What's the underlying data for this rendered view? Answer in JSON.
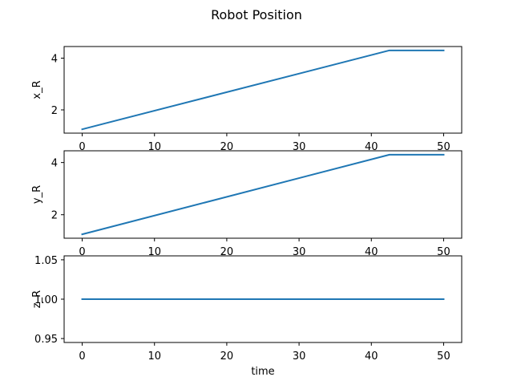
{
  "figure": {
    "title": "Robot Position",
    "line_color": "#1f77b4"
  },
  "chart_data": [
    {
      "type": "line",
      "title": "",
      "xlabel": "",
      "ylabel": "x_R",
      "xlim": [
        -2.5,
        52.5
      ],
      "ylim": [
        1.1,
        4.45
      ],
      "xticks": [
        0,
        10,
        20,
        30,
        40,
        50
      ],
      "yticks": [
        2,
        4
      ],
      "grid": false,
      "series": [
        {
          "x": [
            0,
            42.5,
            50
          ],
          "y": [
            1.25,
            4.3,
            4.3
          ]
        }
      ]
    },
    {
      "type": "line",
      "title": "",
      "xlabel": "",
      "ylabel": "y_R",
      "xlim": [
        -2.5,
        52.5
      ],
      "ylim": [
        1.1,
        4.45
      ],
      "xticks": [
        0,
        10,
        20,
        30,
        40,
        50
      ],
      "yticks": [
        2,
        4
      ],
      "grid": false,
      "series": [
        {
          "x": [
            0,
            42.5,
            50
          ],
          "y": [
            1.25,
            4.3,
            4.3
          ]
        }
      ]
    },
    {
      "type": "line",
      "title": "",
      "xlabel": "time",
      "ylabel": "z_R",
      "xlim": [
        -2.5,
        52.5
      ],
      "ylim": [
        0.945,
        1.055
      ],
      "xticks": [
        0,
        10,
        20,
        30,
        40,
        50
      ],
      "yticks": [
        0.95,
        1.0,
        1.05
      ],
      "ytick_labels": [
        "0.95",
        "1.00",
        "1.05"
      ],
      "grid": false,
      "series": [
        {
          "x": [
            0,
            50
          ],
          "y": [
            1.0,
            1.0
          ]
        }
      ]
    }
  ]
}
